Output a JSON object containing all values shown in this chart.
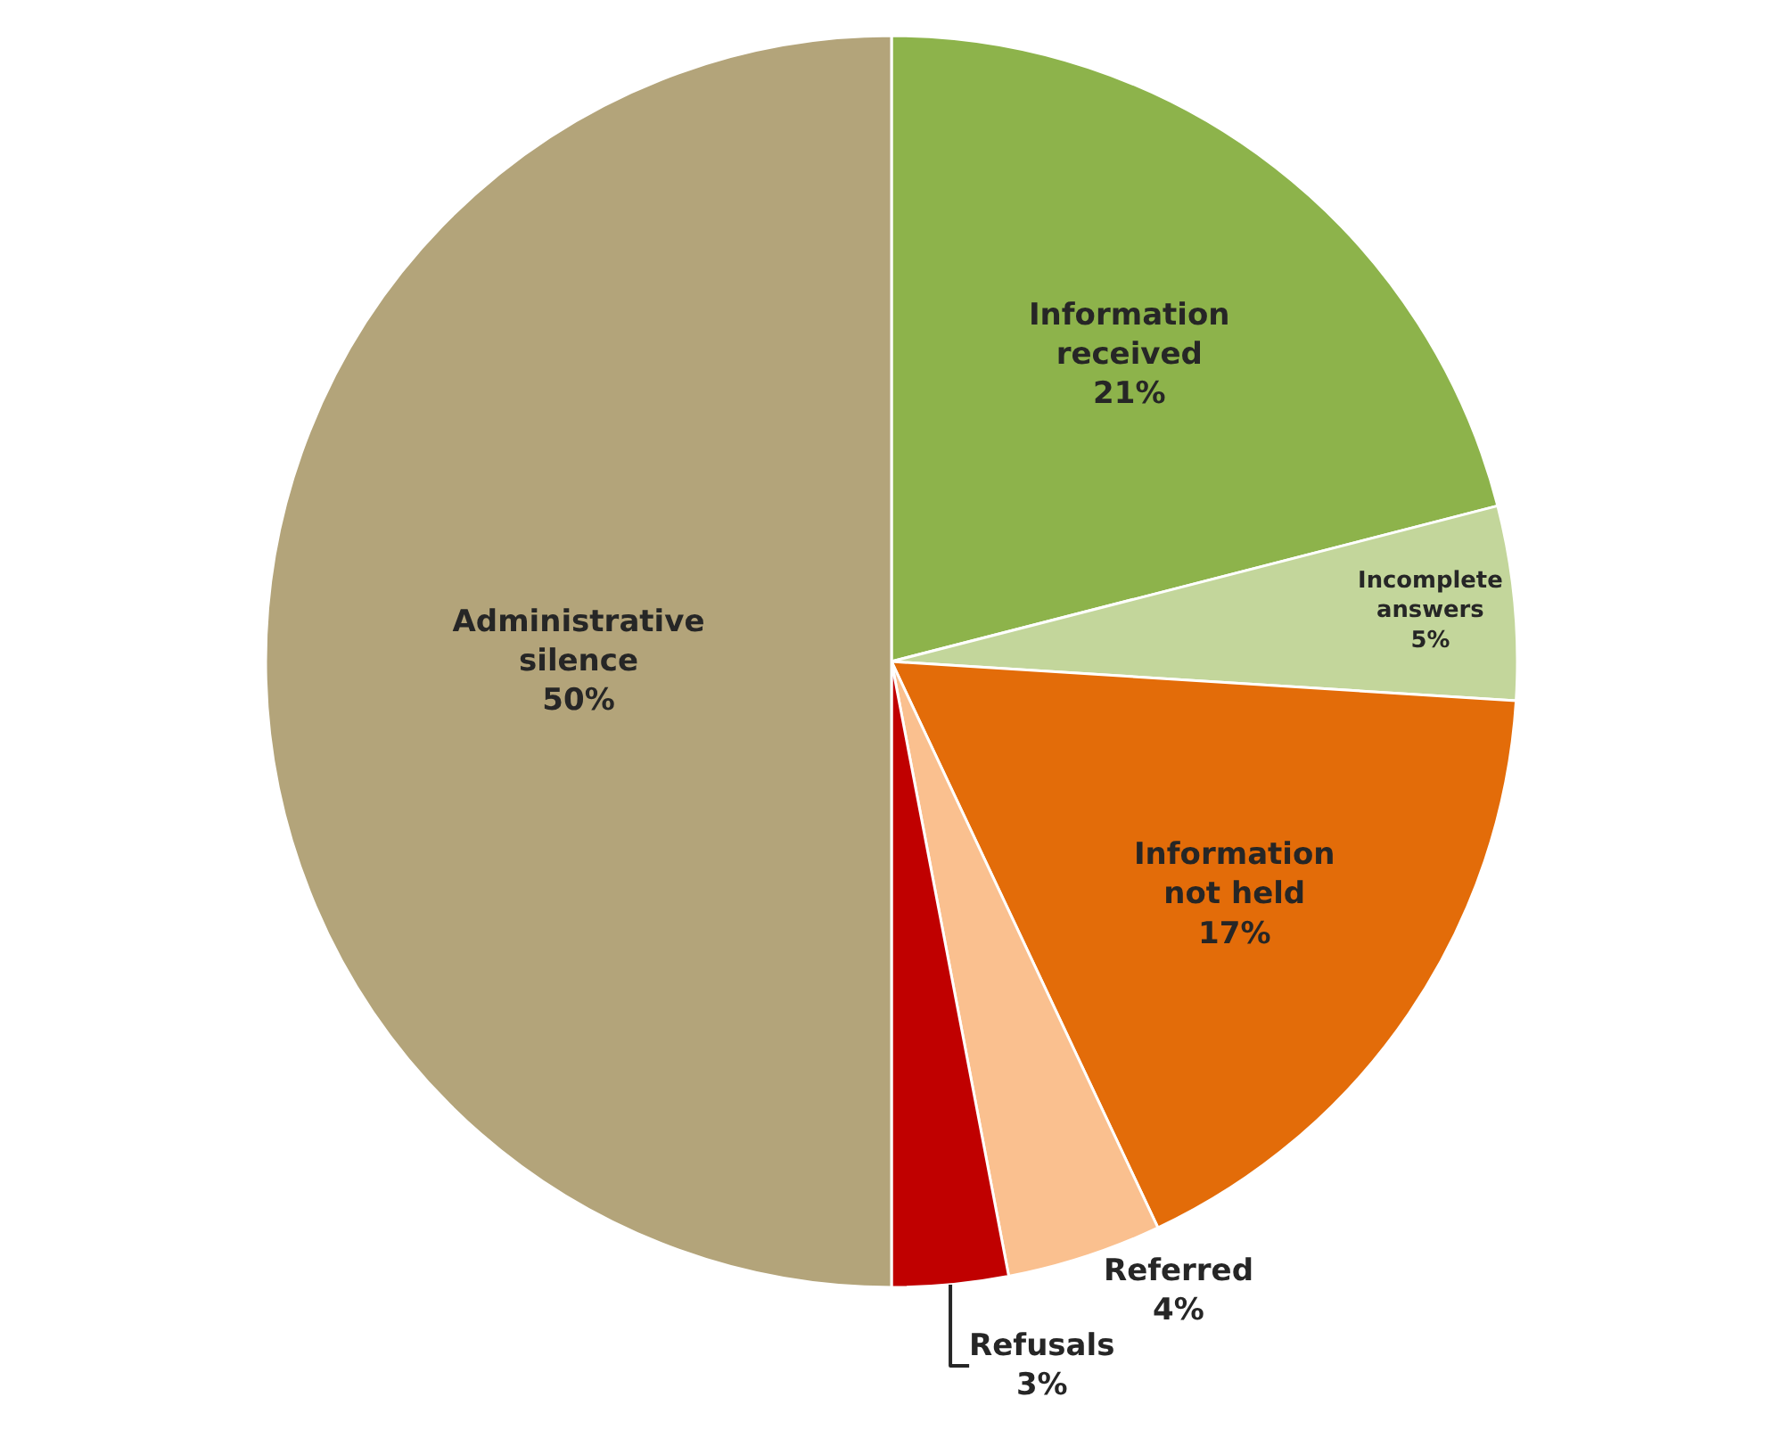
{
  "chart_data": {
    "type": "pie",
    "categories": [
      "Information\nreceived",
      "Incomplete\nanswers",
      "Information\nnot held",
      "Referred",
      "Refusals",
      "Administrative\nsilence"
    ],
    "values": [
      21,
      5,
      17,
      4,
      3,
      50
    ],
    "value_labels": [
      "21%",
      "5%",
      "17%",
      "4%",
      "3%",
      "50%"
    ],
    "colors": [
      "#8db34b",
      "#c3d69b",
      "#e36c09",
      "#fac08f",
      "#c00000",
      "#b3a47a"
    ],
    "legend": false
  }
}
